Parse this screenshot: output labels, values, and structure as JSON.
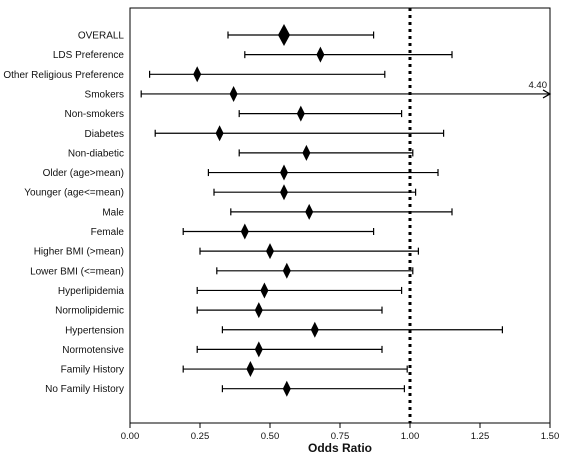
{
  "chart_data": {
    "type": "forest",
    "xlabel": "Odds Ratio",
    "xlim": [
      0,
      1.5
    ],
    "xticks": [
      "0.00",
      "0.25",
      "0.50",
      "0.75",
      "1.00",
      "1.25",
      "1.50"
    ],
    "reference_line": 1.0,
    "rows": [
      {
        "label": "OVERALL",
        "or": 0.55,
        "lo": 0.35,
        "hi": 0.87,
        "overall": true
      },
      {
        "label": "LDS Preference",
        "or": 0.68,
        "lo": 0.41,
        "hi": 1.15
      },
      {
        "label": "Other Religious Preference",
        "or": 0.24,
        "lo": 0.07,
        "hi": 0.91
      },
      {
        "label": "Smokers",
        "or": 0.37,
        "lo": 0.04,
        "hi": 4.4,
        "hi_label": "4.40"
      },
      {
        "label": "Non-smokers",
        "or": 0.61,
        "lo": 0.39,
        "hi": 0.97
      },
      {
        "label": "Diabetes",
        "or": 0.32,
        "lo": 0.09,
        "hi": 1.12
      },
      {
        "label": "Non-diabetic",
        "or": 0.63,
        "lo": 0.39,
        "hi": 1.01
      },
      {
        "label": "Older (age>mean)",
        "or": 0.55,
        "lo": 0.28,
        "hi": 1.1
      },
      {
        "label": "Younger (age<=mean)",
        "or": 0.55,
        "lo": 0.3,
        "hi": 1.02
      },
      {
        "label": "Male",
        "or": 0.64,
        "lo": 0.36,
        "hi": 1.15
      },
      {
        "label": "Female",
        "or": 0.41,
        "lo": 0.19,
        "hi": 0.87
      },
      {
        "label": "Higher BMI (>mean)",
        "or": 0.5,
        "lo": 0.25,
        "hi": 1.03
      },
      {
        "label": "Lower BMI (<=mean)",
        "or": 0.56,
        "lo": 0.31,
        "hi": 1.01
      },
      {
        "label": "Hyperlipidemia",
        "or": 0.48,
        "lo": 0.24,
        "hi": 0.97
      },
      {
        "label": "Normolipidemic",
        "or": 0.46,
        "lo": 0.24,
        "hi": 0.9
      },
      {
        "label": "Hypertension",
        "or": 0.66,
        "lo": 0.33,
        "hi": 1.33
      },
      {
        "label": "Normotensive",
        "or": 0.46,
        "lo": 0.24,
        "hi": 0.9
      },
      {
        "label": "Family History",
        "or": 0.43,
        "lo": 0.19,
        "hi": 0.99
      },
      {
        "label": "No Family History",
        "or": 0.56,
        "lo": 0.33,
        "hi": 0.98
      }
    ]
  }
}
